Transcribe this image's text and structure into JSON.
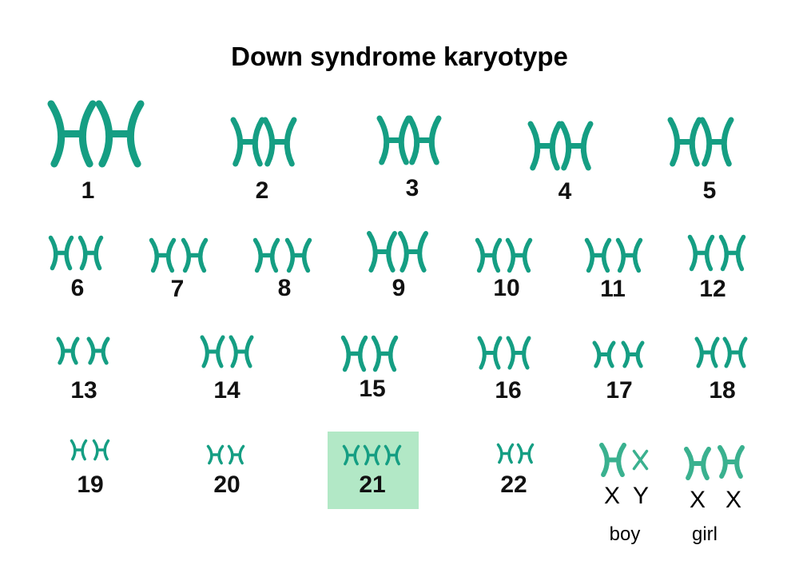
{
  "title": "Down syndrome karyotype",
  "colors": {
    "chromosome": "#159e83",
    "sex_chromosome": "#3ab18f",
    "highlight": "#b2e8c6"
  },
  "highlighted_pair": "21",
  "pairs": [
    {
      "label": "1",
      "count": 2
    },
    {
      "label": "2",
      "count": 2
    },
    {
      "label": "3",
      "count": 2
    },
    {
      "label": "4",
      "count": 2
    },
    {
      "label": "5",
      "count": 2
    },
    {
      "label": "6",
      "count": 2
    },
    {
      "label": "7",
      "count": 2
    },
    {
      "label": "8",
      "count": 2
    },
    {
      "label": "9",
      "count": 2
    },
    {
      "label": "10",
      "count": 2
    },
    {
      "label": "11",
      "count": 2
    },
    {
      "label": "12",
      "count": 2
    },
    {
      "label": "13",
      "count": 2
    },
    {
      "label": "14",
      "count": 2
    },
    {
      "label": "15",
      "count": 2
    },
    {
      "label": "16",
      "count": 2
    },
    {
      "label": "17",
      "count": 2
    },
    {
      "label": "18",
      "count": 2
    },
    {
      "label": "19",
      "count": 2
    },
    {
      "label": "20",
      "count": 2
    },
    {
      "label": "21",
      "count": 3
    },
    {
      "label": "22",
      "count": 2
    }
  ],
  "sex_chromosomes": {
    "boy": {
      "letters": [
        "X",
        "Y"
      ],
      "caption": "boy"
    },
    "girl": {
      "letters": [
        "X",
        "X"
      ],
      "caption": "girl"
    }
  }
}
